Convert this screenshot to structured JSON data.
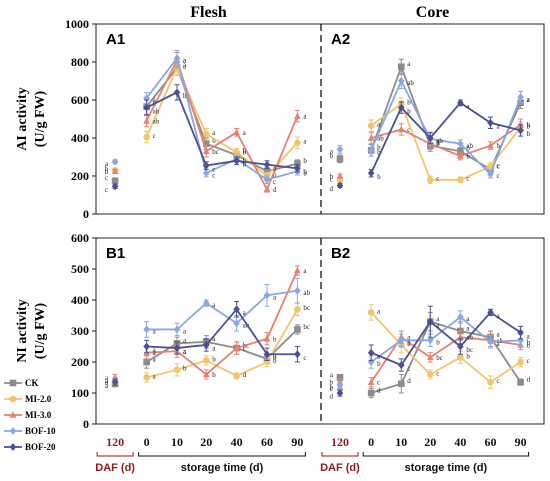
{
  "chart_data": {
    "type": "line",
    "columns": [
      "Flesh",
      "Core"
    ],
    "legend": [
      {
        "name": "CK",
        "color": "#8c8c8c"
      },
      {
        "name": "MI-2.0",
        "color": "#f2c56b"
      },
      {
        "name": "MI-3.0",
        "color": "#e8806f"
      },
      {
        "name": "BOF-10",
        "color": "#86a9e3"
      },
      {
        "name": "BOF-20",
        "color": "#4c4f96"
      }
    ],
    "x_tick_labels": [
      "120",
      "0",
      "10",
      "20",
      "40",
      "60",
      "90"
    ],
    "daf_label": "DAF (d)",
    "storage_label": "storage time (d)",
    "rows": [
      {
        "ylabel_line1": "AI activity",
        "ylabel_line2": "(U/g FW)",
        "ylim": [
          0,
          1000
        ],
        "yticks": [
          "0",
          "200",
          "400",
          "600",
          "800",
          "1000"
        ],
        "panels": [
          {
            "label": "A1",
            "series": [
              {
                "name": "CK",
                "values": [
                  175,
                  565,
                  770,
                  370,
                  310,
                  225,
                  265
                ],
                "err": [
                  10,
                  40,
                  40,
                  30,
                  20,
                  20,
                  20
                ],
                "sig": [
                  "c",
                  "b",
                  "a",
                  "b",
                  "b",
                  "c",
                  "b"
                ]
              },
              {
                "name": "MI-2.0",
                "values": [
                  230,
                  405,
                  770,
                  420,
                  325,
                  200,
                  375
                ],
                "err": [
                  10,
                  30,
                  40,
                  30,
                  20,
                  20,
                  30
                ],
                "sig": [
                  "b",
                  "c",
                  "a",
                  "a",
                  "b",
                  "b",
                  "a"
                ]
              },
              {
                "name": "MI-3.0",
                "values": [
                  225,
                  490,
                  810,
                  330,
                  430,
                  130,
                  515
                ],
                "err": [
                  10,
                  30,
                  40,
                  30,
                  20,
                  15,
                  30
                ],
                "sig": [
                  "b",
                  "ab",
                  "a",
                  "bc",
                  "a",
                  "d",
                  "a"
                ]
              },
              {
                "name": "BOF-10",
                "values": [
                  275,
                  610,
                  820,
                  215,
                  290,
                  180,
                  225
                ],
                "err": [
                  10,
                  30,
                  40,
                  20,
                  20,
                  20,
                  20
                ],
                "sig": [
                  "a",
                  "a",
                  "a",
                  "c",
                  "b",
                  "c",
                  "b"
                ]
              },
              {
                "name": "BOF-20",
                "values": [
                  145,
                  560,
                  640,
                  255,
                  280,
                  260,
                  240
                ],
                "err": [
                  10,
                  40,
                  40,
                  20,
                  20,
                  20,
                  20
                ],
                "sig": [
                  "c",
                  "ab",
                  "b",
                  "c",
                  "b",
                  "a",
                  "b"
                ]
              }
            ]
          },
          {
            "label": "A2",
            "series": [
              {
                "name": "CK",
                "values": [
                  290,
                  335,
                  775,
                  360,
                  330,
                  235,
                  585
                ],
                "err": [
                  20,
                  30,
                  40,
                  30,
                  20,
                  20,
                  30
                ],
                "sig": [
                  "b",
                  "b",
                  "a",
                  "b",
                  "b",
                  "c",
                  "a"
                ]
              },
              {
                "name": "MI-2.0",
                "values": [
                  175,
                  465,
                  580,
                  180,
                  180,
                  250,
                  455
                ],
                "err": [
                  10,
                  30,
                  30,
                  20,
                  15,
                  20,
                  30
                ],
                "sig": [
                  "c",
                  "a",
                  "b",
                  "c",
                  "c",
                  "c",
                  "b"
                ]
              },
              {
                "name": "MI-3.0",
                "values": [
                  200,
                  400,
                  445,
                  370,
                  305,
                  360,
                  470
                ],
                "err": [
                  10,
                  30,
                  30,
                  30,
                  20,
                  20,
                  30
                ],
                "sig": [
                  "b",
                  "ab",
                  "c",
                  "b",
                  "b",
                  "b",
                  "b"
                ]
              },
              {
                "name": "BOF-10",
                "values": [
                  340,
                  335,
                  700,
                  395,
                  370,
                  210,
                  615
                ],
                "err": [
                  20,
                  30,
                  40,
                  30,
                  20,
                  20,
                  30
                ],
                "sig": [
                  "a",
                  "b",
                  "ab",
                  "ab",
                  "ab",
                  "c",
                  "a"
                ]
              },
              {
                "name": "BOF-20",
                "values": [
                  150,
                  215,
                  560,
                  400,
                  585,
                  480,
                  440
                ],
                "err": [
                  10,
                  20,
                  30,
                  30,
                  15,
                  30,
                  30
                ],
                "sig": [
                  "d",
                  "b",
                  "b",
                  "a",
                  "a",
                  "a",
                  "b"
                ]
              }
            ]
          }
        ]
      },
      {
        "ylabel_line1": "NI activity",
        "ylabel_line2": "(U/g FW)",
        "ylim": [
          0,
          600
        ],
        "yticks": [
          "0",
          "100",
          "200",
          "300",
          "400",
          "500",
          "600"
        ],
        "panels": [
          {
            "label": "B1",
            "series": [
              {
                "name": "CK",
                "values": [
                  130,
                  200,
                  260,
                  265,
                  245,
                  210,
                  305
                ],
                "err": [
                  10,
                  20,
                  20,
                  20,
                  20,
                  15,
                  15
                ],
                "sig": [
                  "a",
                  "a",
                  "a",
                  "a",
                  "bc",
                  "b",
                  "bc"
                ]
              },
              {
                "name": "MI-2.0",
                "values": [
                  135,
                  150,
                  175,
                  205,
                  155,
                  200,
                  370
                ],
                "err": [
                  10,
                  15,
                  20,
                  15,
                  10,
                  15,
                  20
                ],
                "sig": [
                  "a",
                  "a",
                  "b",
                  "b",
                  "d",
                  "b",
                  "bc"
                ]
              },
              {
                "name": "MI-3.0",
                "values": [
                  150,
                  230,
                  235,
                  160,
                  245,
                  275,
                  495
                ],
                "err": [
                  10,
                  20,
                  20,
                  15,
                  20,
                  20,
                  15
                ],
                "sig": [
                  "a",
                  "a",
                  "a",
                  "b",
                  "c",
                  "b",
                  "a"
                ]
              },
              {
                "name": "BOF-10",
                "values": [
                  140,
                  305,
                  305,
                  390,
                  325,
                  415,
                  430
                ],
                "err": [
                  10,
                  25,
                  20,
                  10,
                  25,
                  35,
                  40
                ],
                "sig": [
                  "a",
                  "a",
                  "a",
                  "a",
                  "ab",
                  "a",
                  "ab"
                ]
              },
              {
                "name": "BOF-20",
                "values": [
                  135,
                  250,
                  245,
                  255,
                  370,
                  225,
                  225
                ],
                "err": [
                  10,
                  20,
                  20,
                  20,
                  25,
                  20,
                  25
                ],
                "sig": [
                  "a",
                  "a",
                  "a",
                  "a",
                  "a",
                  "b",
                  "c"
                ]
              }
            ]
          },
          {
            "label": "B2",
            "series": [
              {
                "name": "CK",
                "values": [
                  150,
                  100,
                  130,
                  330,
                  300,
                  280,
                  135
                ],
                "err": [
                  10,
                  15,
                  30,
                  30,
                  30,
                  20,
                  10
                ],
                "sig": [
                  "a",
                  "d",
                  "d",
                  "a",
                  "a",
                  "a",
                  "d"
                ]
              },
              {
                "name": "MI-2.0",
                "values": [
                  110,
                  360,
                  255,
                  160,
                  215,
                  135,
                  200
                ],
                "err": [
                  10,
                  25,
                  25,
                  15,
                  20,
                  20,
                  15
                ],
                "sig": [
                  "c",
                  "a",
                  "b",
                  "c",
                  "b",
                  "c",
                  "c"
                ]
              },
              {
                "name": "MI-3.0",
                "values": [
                  135,
                  135,
                  280,
                  215,
                  280,
                  270,
                  255
                ],
                "err": [
                  10,
                  15,
                  20,
                  15,
                  20,
                  20,
                  15
                ],
                "sig": [
                  "b",
                  "c",
                  "a",
                  "bc",
                  "ab",
                  "ab",
                  "b"
                ]
              },
              {
                "name": "BOF-10",
                "values": [
                  125,
                  200,
                  270,
                  270,
                  345,
                  265,
                  270
                ],
                "err": [
                  10,
                  20,
                  20,
                  20,
                  20,
                  20,
                  20
                ],
                "sig": [
                  "b",
                  "b",
                  "a",
                  "b",
                  "a",
                  "a",
                  "b"
                ]
              },
              {
                "name": "BOF-20",
                "values": [
                  100,
                  230,
                  190,
                  330,
                  250,
                  360,
                  295
                ],
                "err": [
                  10,
                  25,
                  20,
                  50,
                  25,
                  10,
                  20
                ],
                "sig": [
                  "d",
                  "a",
                  "c",
                  "a",
                  "bc",
                  "a",
                  "a"
                ]
              }
            ]
          }
        ]
      }
    ]
  }
}
